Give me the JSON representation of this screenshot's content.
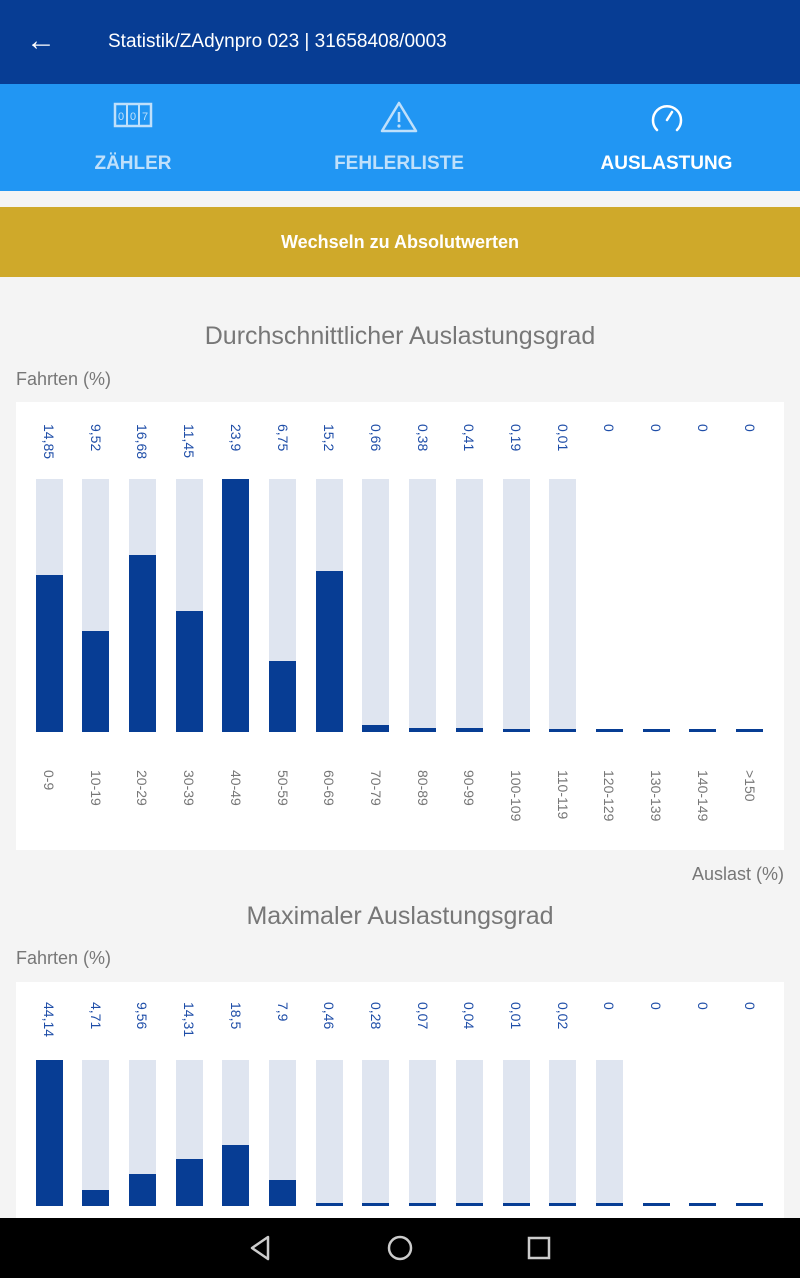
{
  "appbar": {
    "title": "Statistik/ZAdynpro   023 | 31658408/0003"
  },
  "tabs": [
    {
      "label": "ZÄHLER",
      "icon": "counter-icon"
    },
    {
      "label": "FEHLERLISTE",
      "icon": "warning-icon"
    },
    {
      "label": "AUSLASTUNG",
      "icon": "speedometer-icon",
      "active": true
    }
  ],
  "toggle_button": "Wechseln zu Absolutwerten",
  "colors": {
    "appbar": "#073d94",
    "tabs": "#2196f3",
    "button": "#cfa92a",
    "bar": "#073d94",
    "bar_bg": "#dfe5f0"
  },
  "chart_data": [
    {
      "type": "bar",
      "title": "Durchschnittlicher Auslastungsgrad",
      "ylabel": "Fahrten (%)",
      "xlabel": "Auslast (%)",
      "categories": [
        "0-9",
        "10-19",
        "20-29",
        "30-39",
        "40-49",
        "50-59",
        "60-69",
        "70-79",
        "80-89",
        "90-99",
        "100-109",
        "110-119",
        "120-129",
        "130-139",
        "140-149",
        ">150"
      ],
      "values": [
        14.85,
        9.52,
        16.68,
        11.45,
        23.9,
        6.75,
        15.2,
        0.66,
        0.38,
        0.41,
        0.19,
        0.01,
        0,
        0,
        0,
        0
      ],
      "labels": [
        "14,85",
        "9,52",
        "16,68",
        "11,45",
        "23,9",
        "6,75",
        "15,2",
        "0,66",
        "0,38",
        "0,41",
        "0,19",
        "0,01",
        "0",
        "0",
        "0",
        "0"
      ],
      "ylim": [
        0,
        23.9
      ]
    },
    {
      "type": "bar",
      "title": "Maximaler Auslastungsgrad",
      "ylabel": "Fahrten (%)",
      "values": [
        44.14,
        4.71,
        9.56,
        14.31,
        18.5,
        7.9,
        0.46,
        0.28,
        0.07,
        0.04,
        0.01,
        0.02,
        0,
        0,
        0,
        0
      ],
      "labels": [
        "44,14",
        "4,71",
        "9,56",
        "14,31",
        "18,5",
        "7,9",
        "0,46",
        "0,28",
        "0,07",
        "0,04",
        "0,01",
        "0,02",
        "0",
        "0",
        "0",
        "0"
      ],
      "ylim": [
        0,
        44.14
      ]
    }
  ]
}
